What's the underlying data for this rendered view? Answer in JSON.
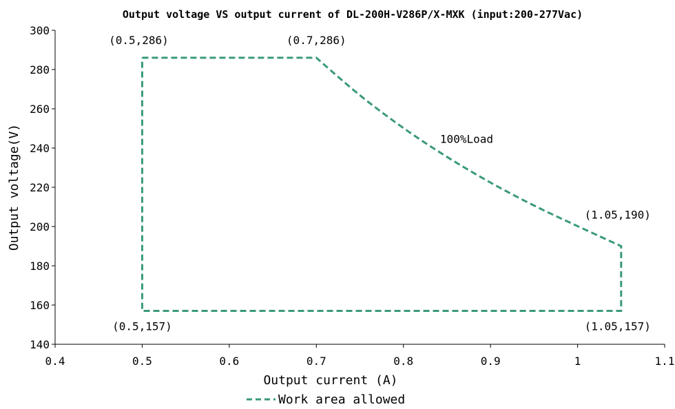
{
  "chart_data": {
    "type": "line",
    "title": "Output voltage VS output current of DL-200H-V286P/X-MXK (input:200-277Vac)",
    "xlabel": "Output current (A)",
    "ylabel": "Output voltage(V)",
    "xlim": [
      0.4,
      1.1
    ],
    "ylim": [
      140,
      300
    ],
    "x_ticks": [
      0.4,
      0.5,
      0.6,
      0.7,
      0.8,
      0.9,
      1,
      1.1
    ],
    "x_tick_labels": [
      "0.4",
      "0.5",
      "0.6",
      "0.7",
      "0.8",
      "0.9",
      "1",
      "1.1"
    ],
    "y_ticks": [
      140,
      160,
      180,
      200,
      220,
      240,
      260,
      280,
      300
    ],
    "y_tick_labels": [
      "140",
      "160",
      "180",
      "200",
      "220",
      "240",
      "260",
      "280",
      "300"
    ],
    "grid": false,
    "legend_position": "bottom",
    "series": [
      {
        "name": "Work area allowed",
        "color": "#3a9a77",
        "line_style": "dashed",
        "x": [
          0.5,
          0.7,
          0.75,
          0.8,
          0.85,
          0.9,
          0.95,
          1.0,
          1.05,
          1.05,
          0.5,
          0.5
        ],
        "y": [
          286,
          286,
          266.9,
          250.2,
          235.5,
          222.4,
          210.7,
          200.2,
          190,
          157,
          157,
          286
        ]
      }
    ],
    "annotations": [
      {
        "text": "(0.5,286)",
        "x": 0.5,
        "y": 286
      },
      {
        "text": "(0.7,286)",
        "x": 0.7,
        "y": 286
      },
      {
        "text": "100%Load",
        "x": 0.85,
        "y": 235
      },
      {
        "text": "(1.05,190)",
        "x": 1.05,
        "y": 190
      },
      {
        "text": "(0.5,157)",
        "x": 0.5,
        "y": 157
      },
      {
        "text": "(1.05,157)",
        "x": 1.05,
        "y": 157
      }
    ]
  }
}
